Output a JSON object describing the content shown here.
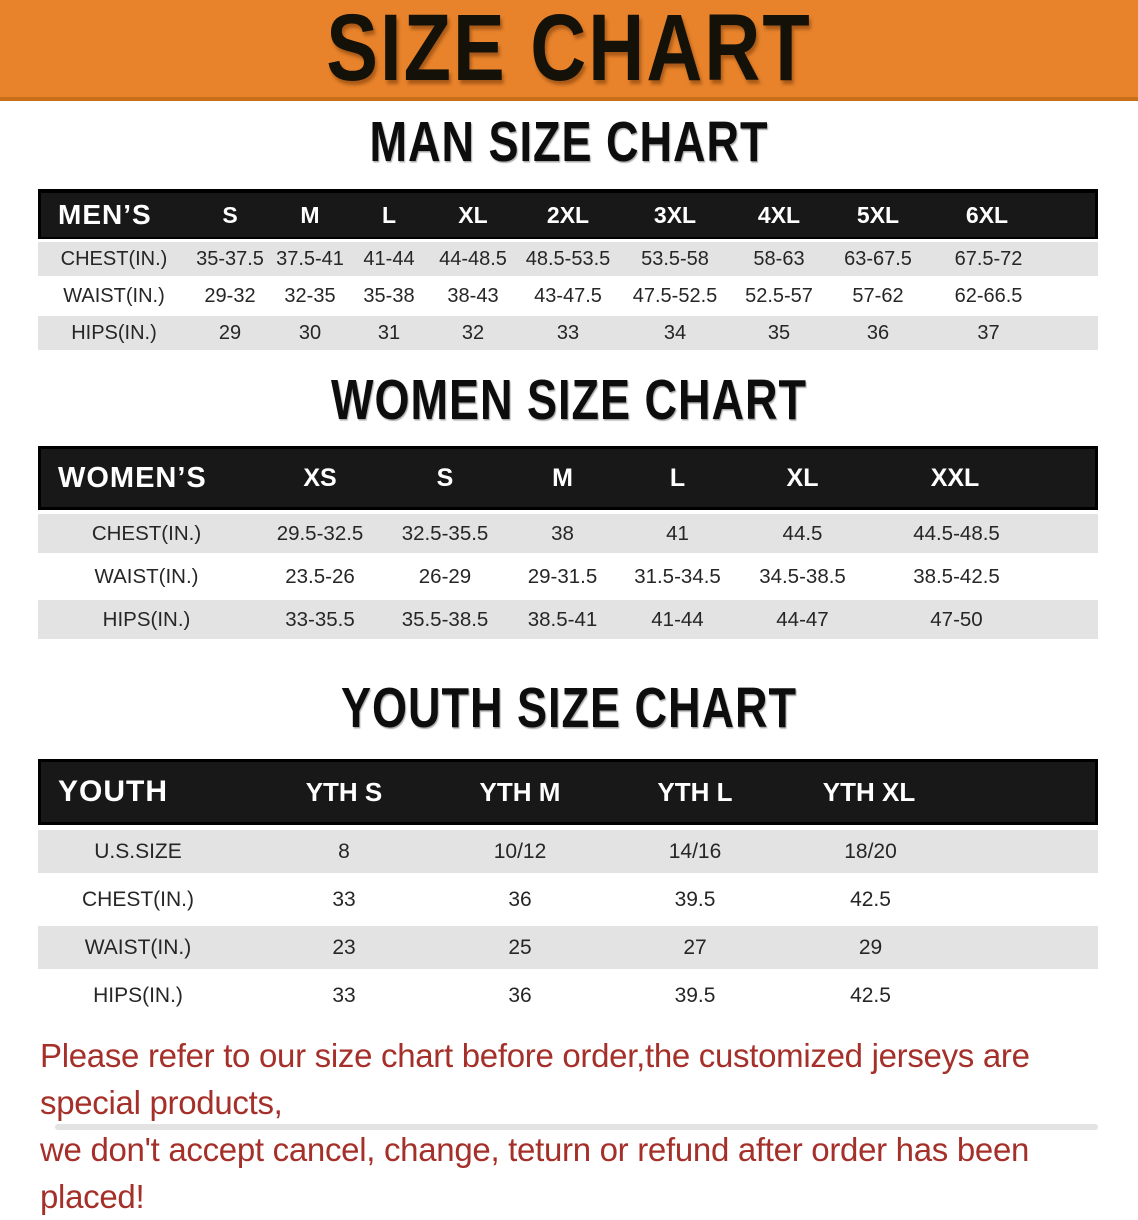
{
  "banner": {
    "title": "SIZE CHART"
  },
  "colors": {
    "banner_bg": "#E8832B",
    "banner_border": "#C96F1A",
    "header_bar": "#181818",
    "row_shade": "#e3e3e3",
    "footer_text": "#A5302A"
  },
  "sections": {
    "men": {
      "heading": "MAN SIZE CHART",
      "table": {
        "corner": "MEN’S",
        "columns": [
          "S",
          "M",
          "L",
          "XL",
          "2XL",
          "3XL",
          "4XL",
          "5XL",
          "6XL"
        ],
        "rows": [
          {
            "label": "CHEST(IN.)",
            "values": [
              "35-37.5",
              "37.5-41",
              "41-44",
              "44-48.5",
              "48.5-53.5",
              "53.5-58",
              "58-63",
              "63-67.5",
              "67.5-72"
            ]
          },
          {
            "label": "WAIST(IN.)",
            "values": [
              "29-32",
              "32-35",
              "35-38",
              "38-43",
              "43-47.5",
              "47.5-52.5",
              "52.5-57",
              "57-62",
              "62-66.5"
            ]
          },
          {
            "label": "HIPS(IN.)",
            "values": [
              "29",
              "30",
              "31",
              "32",
              "33",
              "34",
              "35",
              "36",
              "37"
            ]
          }
        ]
      }
    },
    "women": {
      "heading": "WOMEN SIZE CHART",
      "table": {
        "corner": "WOMEN’S",
        "columns": [
          "XS",
          "S",
          "M",
          "L",
          "XL",
          "XXL"
        ],
        "rows": [
          {
            "label": "CHEST(IN.)",
            "values": [
              "29.5-32.5",
              "32.5-35.5",
              "38",
              "41",
              "44.5",
              "44.5-48.5"
            ]
          },
          {
            "label": "WAIST(IN.)",
            "values": [
              "23.5-26",
              "26-29",
              "29-31.5",
              "31.5-34.5",
              "34.5-38.5",
              "38.5-42.5"
            ]
          },
          {
            "label": "HIPS(IN.)",
            "values": [
              "33-35.5",
              "35.5-38.5",
              "38.5-41",
              "41-44",
              "44-47",
              "47-50"
            ]
          }
        ]
      }
    },
    "youth": {
      "heading": "YOUTH SIZE CHART",
      "table": {
        "corner": "YOUTH",
        "columns": [
          "YTH S",
          "YTH M",
          "YTH L",
          "YTH XL"
        ],
        "rows": [
          {
            "label": "U.S.SIZE",
            "values": [
              "8",
              "10/12",
              "14/16",
              "18/20"
            ]
          },
          {
            "label": "CHEST(IN.)",
            "values": [
              "33",
              "36",
              "39.5",
              "42.5"
            ]
          },
          {
            "label": "WAIST(IN.)",
            "values": [
              "23",
              "25",
              "27",
              "29"
            ]
          },
          {
            "label": "HIPS(IN.)",
            "values": [
              "33",
              "36",
              "39.5",
              "42.5"
            ]
          }
        ]
      }
    }
  },
  "footer": {
    "line1": "Please refer to our size chart before order,the customized jerseys are special products,",
    "line2": "we don't accept cancel, change, teturn or refund after order has been placed!"
  }
}
